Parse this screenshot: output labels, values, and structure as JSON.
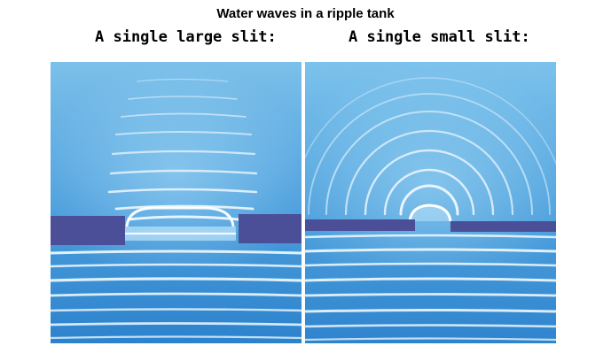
{
  "figure": {
    "title": "Water waves in a ripple tank"
  },
  "panels": [
    {
      "label": "A single large slit:",
      "image": "ripple-tank-photo-large-slit"
    },
    {
      "label": "A single small slit:",
      "image": "ripple-tank-photo-small-slit"
    }
  ],
  "colors": {
    "water_top": "#6fb6e6",
    "water_bottom": "#2f86d0",
    "barrier": "#4b4f97",
    "crest": "#eef8ff"
  }
}
